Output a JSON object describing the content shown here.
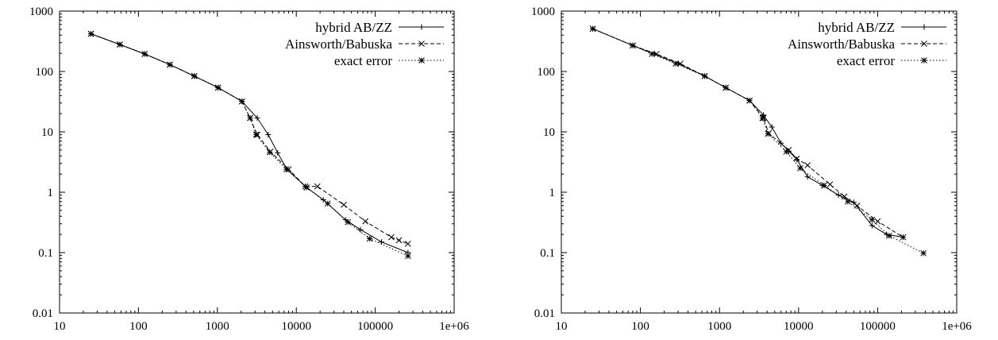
{
  "chart_data": [
    {
      "type": "line",
      "x_scale": "log",
      "y_scale": "log",
      "xlim": [
        10,
        1000000
      ],
      "ylim": [
        0.01,
        1000
      ],
      "grid": false,
      "legend_position": "top-right",
      "x_tick_labels": [
        "10",
        "100",
        "1000",
        "10000",
        "100000",
        "1e+06"
      ],
      "y_tick_labels": [
        "0.01",
        "0.1",
        "1",
        "10",
        "100",
        "1000"
      ],
      "series": [
        {
          "name": "hybrid AB/ZZ",
          "line_style": "solid",
          "marker": "plus",
          "x": [
            25,
            58,
            120,
            250,
            510,
            1020,
            2050,
            3200,
            4400,
            5800,
            7600,
            13000,
            22000,
            42000,
            65000,
            120000,
            260000
          ],
          "y": [
            420,
            280,
            195,
            130,
            84,
            54,
            32,
            17,
            9.0,
            4.5,
            2.4,
            1.25,
            0.75,
            0.35,
            0.24,
            0.15,
            0.1
          ]
        },
        {
          "name": "Ainsworth/Babuska",
          "line_style": "dashed",
          "marker": "x",
          "x": [
            25,
            58,
            120,
            250,
            510,
            1020,
            2050,
            2600,
            3200,
            4700,
            8000,
            13000,
            18500,
            40000,
            75000,
            160000,
            200000,
            260000
          ],
          "y": [
            420,
            280,
            195,
            130,
            84,
            54,
            32,
            17,
            9.0,
            4.7,
            2.4,
            1.25,
            1.25,
            0.62,
            0.33,
            0.18,
            0.16,
            0.14
          ]
        },
        {
          "name": "exact error",
          "line_style": "dotted",
          "marker": "star",
          "x": [
            25,
            58,
            120,
            250,
            510,
            1020,
            2050,
            2600,
            3100,
            4600,
            7500,
            13500,
            25000,
            45000,
            85000,
            260000
          ],
          "y": [
            420,
            280,
            195,
            130,
            84,
            54,
            32,
            17,
            9.0,
            4.6,
            2.4,
            1.2,
            0.65,
            0.32,
            0.17,
            0.088
          ]
        }
      ]
    },
    {
      "type": "line",
      "x_scale": "log",
      "y_scale": "log",
      "xlim": [
        10,
        1000000
      ],
      "ylim": [
        0.01,
        1000
      ],
      "grid": false,
      "legend_position": "top-right",
      "x_tick_labels": [
        "10",
        "100",
        "1000",
        "10000",
        "100000",
        "1e+06"
      ],
      "y_tick_labels": [
        "0.01",
        "0.1",
        "1",
        "10",
        "100",
        "1000"
      ],
      "series": [
        {
          "name": "hybrid AB/ZZ",
          "line_style": "solid",
          "marker": "plus",
          "x": [
            25,
            80,
            150,
            300,
            650,
            1200,
            2400,
            3600,
            4600,
            6000,
            7500,
            9500,
            13000,
            20000,
            32000,
            50000,
            85000,
            130000,
            210000
          ],
          "y": [
            510,
            270,
            195,
            135,
            84,
            54,
            33,
            19,
            12,
            6.5,
            4.8,
            3.5,
            1.8,
            1.3,
            0.9,
            0.68,
            0.28,
            0.2,
            0.18
          ]
        },
        {
          "name": "Ainsworth/Babuska",
          "line_style": "dashed",
          "marker": "x",
          "x": [
            25,
            80,
            160,
            320,
            650,
            1200,
            2400,
            3600,
            4200,
            7500,
            9500,
            13000,
            25000,
            38000,
            55000,
            100000,
            210000
          ],
          "y": [
            510,
            270,
            195,
            135,
            84,
            54,
            33,
            17,
            9.5,
            5.0,
            3.6,
            2.8,
            1.35,
            0.85,
            0.6,
            0.33,
            0.18
          ]
        },
        {
          "name": "exact error",
          "line_style": "dotted",
          "marker": "star",
          "x": [
            25,
            80,
            140,
            280,
            650,
            1200,
            2400,
            3500,
            4100,
            7000,
            10500,
            21000,
            42000,
            85000,
            140000,
            380000
          ],
          "y": [
            510,
            270,
            195,
            135,
            84,
            54,
            33,
            17,
            9.3,
            4.7,
            2.5,
            1.3,
            0.7,
            0.35,
            0.19,
            0.098
          ]
        }
      ]
    }
  ]
}
